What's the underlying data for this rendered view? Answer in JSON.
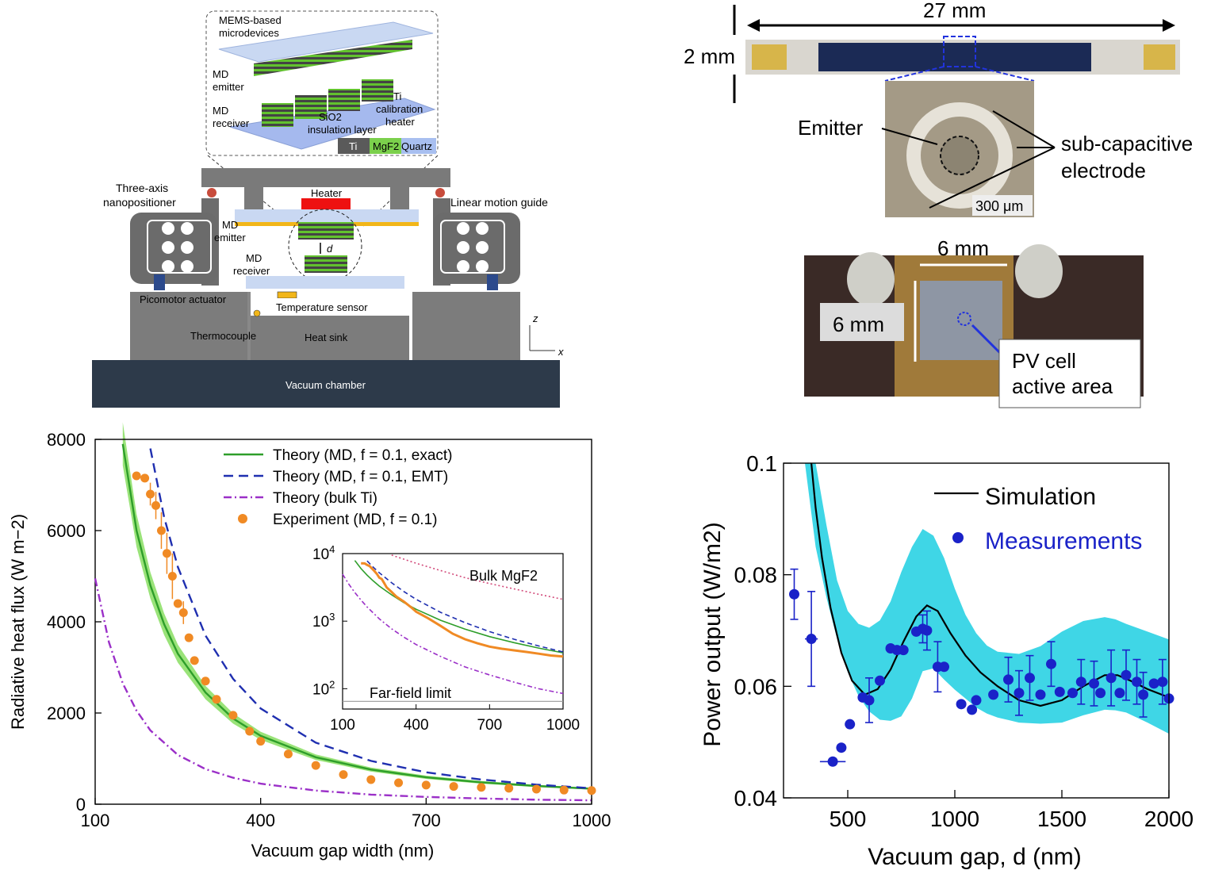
{
  "colors": {
    "dark_gray": "#5f5f5f",
    "light_gray": "#bdbdbd",
    "vacuum_chamber": "#2d3a4a",
    "green": "#2e9e2a",
    "green_band": "#8fe06a",
    "blue_dash": "#1f2fb0",
    "purple": "#9b30c8",
    "orange": "#f08a24",
    "pink": "#d24a7a",
    "cyan_band": "#3fd6e6",
    "meas_blue": "#1a22c8",
    "heater_red": "#ee1111",
    "gold": "#f2b619"
  },
  "schematic": {
    "inset_title": "MEMS-based\nmicrodevices",
    "inset_md_emitter": "MD\nemitter",
    "inset_md_receiver": "MD\nreceiver",
    "inset_ti_heater": "Ti\ncalibration\nheater",
    "inset_sio2": "SiO2",
    "inset_insulation": "insulation layer",
    "legend_ti": "Ti",
    "legend_mgf2": "MgF2",
    "legend_quartz": "Quartz",
    "three_axis": "Three-axis\nnanopositioner",
    "linear_guide": "Linear motion guide",
    "heater": "Heater",
    "md_emitter": "MD\nemitter",
    "md_receiver": "MD\nreceiver",
    "gap_symbol": "d",
    "picomotor": "Picomotor actuator",
    "temp_sensor": "Temperature sensor",
    "thermocouple": "Thermocouple",
    "heat_sink": "Heat sink",
    "vacuum_chamber": "Vacuum chamber",
    "axis_z": "z",
    "axis_x": "x"
  },
  "photos": {
    "length_label": "27 mm",
    "height_label": "2 mm",
    "emitter_label": "Emitter",
    "electrode_label": "sub-capacitive\nelectrode",
    "scale_label": "300 μm",
    "cell_width": "6 mm",
    "cell_height": "6 mm",
    "pv_label": "PV cell\nactive area"
  },
  "chart_data": [
    {
      "type": "line",
      "xlabel": "Vacuum gap width (nm)",
      "ylabel": "Radiative heat flux (W m−2)",
      "xlim": [
        100,
        1000
      ],
      "ylim": [
        0,
        8000
      ],
      "x_ticks": [
        100,
        400,
        700,
        1000
      ],
      "y_ticks": [
        0,
        2000,
        4000,
        6000,
        8000
      ],
      "legend_placement": "top-right",
      "series": [
        {
          "name": "Theory (MD, f = 0.1, exact)",
          "style": "solid",
          "color": "#2e9e2a",
          "x": [
            150,
            175,
            200,
            225,
            250,
            300,
            350,
            400,
            500,
            600,
            700,
            800,
            900,
            1000
          ],
          "y": [
            7900,
            6000,
            4800,
            3950,
            3300,
            2450,
            1880,
            1500,
            1030,
            760,
            590,
            480,
            400,
            340
          ]
        },
        {
          "name": "Theory (MD, f = 0.1, EMT)",
          "style": "dashed",
          "color": "#1f2fb0",
          "x": [
            200,
            225,
            250,
            300,
            350,
            400,
            500,
            600,
            700,
            800,
            900,
            1000
          ],
          "y": [
            7800,
            6300,
            5200,
            3700,
            2750,
            2100,
            1350,
            950,
            700,
            540,
            430,
            350
          ]
        },
        {
          "name": "Theory (bulk Ti)",
          "style": "dashdot",
          "color": "#9b30c8",
          "x": [
            100,
            125,
            150,
            175,
            200,
            250,
            300,
            350,
            400,
            500,
            600,
            700,
            800,
            900,
            1000
          ],
          "y": [
            4950,
            3550,
            2650,
            2050,
            1620,
            1080,
            770,
            580,
            450,
            300,
            210,
            160,
            125,
            100,
            85
          ]
        },
        {
          "name": "Experiment (MD, f = 0.1)",
          "style": "markers",
          "color": "#f08a24",
          "x": [
            175,
            190,
            200,
            210,
            220,
            230,
            240,
            250,
            260,
            270,
            280,
            300,
            320,
            350,
            380,
            400,
            450,
            500,
            550,
            600,
            650,
            700,
            750,
            800,
            850,
            900,
            950,
            1000
          ],
          "y": [
            7200,
            7150,
            6800,
            6550,
            6000,
            5500,
            5000,
            4400,
            4200,
            3650,
            3150,
            2700,
            2300,
            1950,
            1600,
            1380,
            1100,
            850,
            650,
            540,
            470,
            420,
            390,
            370,
            350,
            330,
            310,
            300
          ],
          "yerr": [
            0,
            0,
            250,
            300,
            400,
            450,
            500,
            0,
            250,
            0,
            0,
            0,
            0,
            0,
            0,
            0,
            0,
            0,
            0,
            0,
            0,
            0,
            0,
            0,
            0,
            0,
            0,
            0
          ]
        }
      ],
      "legend": [
        {
          "label": "Theory (MD, f = 0.1, exact)"
        },
        {
          "label": "Theory (MD, f = 0.1, EMT)"
        },
        {
          "label": "Theory (bulk Ti)"
        },
        {
          "label": "Experiment (MD, f = 0.1)"
        }
      ],
      "inset": {
        "type": "line",
        "yscale": "log",
        "xlim": [
          100,
          1000
        ],
        "ylim": [
          50,
          10000
        ],
        "x_ticks": [
          100,
          400,
          700,
          1000
        ],
        "y_ticks": [
          "10^4",
          "10^3",
          "10^2"
        ],
        "annotation_bulk": "Bulk MgF2",
        "annotation_far": "Far-field limit",
        "far_field_value": 65,
        "bulk_mgf2": {
          "x": [
            300,
            400,
            500,
            600,
            700,
            800,
            900,
            1000
          ],
          "y": [
            9500,
            7200,
            5600,
            4400,
            3600,
            3000,
            2500,
            2100
          ]
        }
      }
    },
    {
      "type": "line",
      "xlabel": "Vacuum gap, d (nm)",
      "ylabel": "Power output (W/m2)",
      "xlim": [
        200,
        2000
      ],
      "ylim": [
        0.04,
        0.1
      ],
      "x_ticks": [
        500,
        1000,
        1500,
        2000
      ],
      "y_ticks": [
        0.04,
        0.06,
        0.08,
        0.1
      ],
      "legend_placement": "top-right",
      "series": [
        {
          "name": "Simulation",
          "style": "solid",
          "color": "#000000",
          "x": [
            330,
            350,
            380,
            420,
            470,
            520,
            580,
            640,
            700,
            760,
            820,
            870,
            920,
            980,
            1050,
            1120,
            1200,
            1300,
            1400,
            1500,
            1600,
            1700,
            1760,
            1820,
            1900,
            2000
          ],
          "y": [
            0.1,
            0.092,
            0.083,
            0.074,
            0.066,
            0.061,
            0.0585,
            0.0595,
            0.063,
            0.068,
            0.0725,
            0.0745,
            0.0735,
            0.0695,
            0.0655,
            0.0625,
            0.06,
            0.0575,
            0.0565,
            0.0575,
            0.06,
            0.062,
            0.062,
            0.061,
            0.0595,
            0.058
          ]
        },
        {
          "name": "Measurements",
          "style": "markers",
          "color": "#1a22c8",
          "x": [
            250,
            330,
            430,
            470,
            510,
            570,
            600,
            650,
            700,
            730,
            760,
            820,
            850,
            870,
            920,
            950,
            1030,
            1080,
            1100,
            1180,
            1250,
            1300,
            1350,
            1400,
            1450,
            1490,
            1550,
            1590,
            1650,
            1680,
            1730,
            1770,
            1800,
            1850,
            1880,
            1930,
            1970,
            2000
          ],
          "y": [
            0.0765,
            0.0685,
            0.0465,
            0.049,
            0.0532,
            0.058,
            0.0575,
            0.061,
            0.0668,
            0.0665,
            0.0665,
            0.0698,
            0.0703,
            0.07,
            0.0635,
            0.0635,
            0.0568,
            0.0558,
            0.0575,
            0.0585,
            0.0612,
            0.0588,
            0.0615,
            0.0585,
            0.064,
            0.059,
            0.0588,
            0.0608,
            0.0605,
            0.0588,
            0.0615,
            0.0588,
            0.062,
            0.0608,
            0.0585,
            0.0605,
            0.0608,
            0.0578
          ],
          "yerr": [
            0.0045,
            0.0085,
            0.0,
            0.0,
            0.0,
            0.0,
            0.004,
            0.0,
            0.0,
            0.0,
            0.0,
            0.0,
            0.0025,
            0.0035,
            0.0045,
            0.0,
            0.0,
            0.0,
            0.0,
            0.0,
            0.004,
            0.004,
            0.004,
            0.0,
            0.004,
            0.0,
            0.0,
            0.004,
            0.004,
            0.0,
            0.005,
            0.0,
            0.0045,
            0.004,
            0.004,
            0.0,
            0.004,
            0.0
          ],
          "xerr": [
            0,
            30,
            60,
            0,
            0,
            0,
            0,
            0,
            0,
            0,
            0,
            0,
            0,
            0,
            0,
            0,
            0,
            0,
            0,
            0,
            0,
            0,
            0,
            0,
            0,
            0,
            0,
            0,
            0,
            0,
            0,
            0,
            0,
            0,
            0,
            0,
            0,
            0
          ]
        },
        {
          "name": "band",
          "style": "band",
          "color": "#3fd6e6",
          "x": [
            300,
            350,
            400,
            450,
            500,
            550,
            600,
            650,
            700,
            750,
            800,
            850,
            900,
            950,
            1000,
            1050,
            1100,
            1150,
            1200,
            1300,
            1400,
            1500,
            1600,
            1700,
            1750,
            1800,
            1900,
            2000
          ],
          "upper": [
            0.1,
            0.1,
            0.089,
            0.079,
            0.0735,
            0.0712,
            0.0705,
            0.0718,
            0.0752,
            0.0805,
            0.085,
            0.0882,
            0.087,
            0.083,
            0.0775,
            0.0728,
            0.0695,
            0.0673,
            0.0662,
            0.0658,
            0.0672,
            0.0698,
            0.0717,
            0.0724,
            0.072,
            0.0712,
            0.0698,
            0.0684
          ],
          "lower": [
            0.1,
            0.085,
            0.076,
            0.0685,
            0.0625,
            0.0583,
            0.0555,
            0.054,
            0.0538,
            0.0546,
            0.0578,
            0.0627,
            0.0632,
            0.0612,
            0.0594,
            0.0578,
            0.0562,
            0.0551,
            0.0544,
            0.0535,
            0.0533,
            0.0535,
            0.0548,
            0.0558,
            0.0557,
            0.0553,
            0.0535,
            0.0515
          ]
        }
      ],
      "legend": [
        {
          "label": "Simulation"
        },
        {
          "label": "Measurements"
        }
      ]
    }
  ]
}
